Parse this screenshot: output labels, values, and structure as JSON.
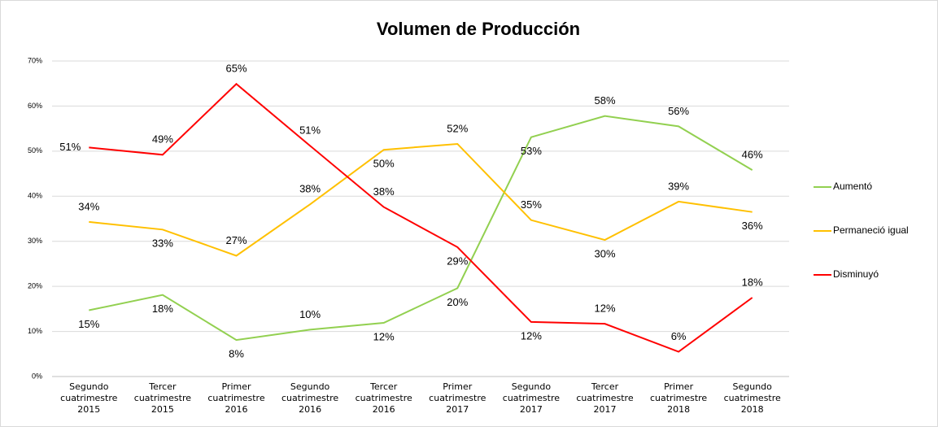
{
  "chart_data": {
    "type": "line",
    "title": "Volumen de Producción",
    "categories": [
      "Segundo cuatrimestre 2015",
      "Tercer cuatrimestre 2015",
      "Primer cuatrimestre 2016",
      "Segundo cuatrimestre 2016",
      "Tercer cuatrimestre 2016",
      "Primer cuatrimestre 2017",
      "Segundo cuatrimestre 2017",
      "Tercer cuatrimestre 2017",
      "Primer cuatrimestre 2018",
      "Segundo cuatrimestre 2018"
    ],
    "series": [
      {
        "name": "Aumentó",
        "color": "#92d050",
        "values": [
          14.7,
          18.1,
          8.1,
          10.4,
          11.9,
          19.6,
          53.1,
          57.8,
          55.5,
          45.8
        ],
        "value_labels": [
          "15%",
          "18%",
          "8%",
          "10%",
          "12%",
          "20%",
          "53%",
          "58%",
          "56%",
          "46%"
        ]
      },
      {
        "name": "Permaneció igual",
        "color": "#ffc000",
        "values": [
          34.3,
          32.6,
          26.8,
          38.2,
          50.3,
          51.6,
          34.7,
          30.3,
          38.8,
          36.5
        ],
        "value_labels": [
          "34%",
          "33%",
          "27%",
          "38%",
          "50%",
          "52%",
          "35%",
          "30%",
          "39%",
          "36%"
        ]
      },
      {
        "name": "Disminuyó",
        "color": "#ff0000",
        "values": [
          50.8,
          49.2,
          64.9,
          51.2,
          37.6,
          28.7,
          12.1,
          11.7,
          5.5,
          17.5
        ],
        "value_labels": [
          "51%",
          "49%",
          "65%",
          "51%",
          "38%",
          "29%",
          "12%",
          "12%",
          "6%",
          "18%"
        ]
      }
    ],
    "ylim": [
      0,
      70
    ],
    "yticks": [
      {
        "value": 0,
        "label": "0%"
      },
      {
        "value": 10,
        "label": "10%"
      },
      {
        "value": 20,
        "label": "20%"
      },
      {
        "value": 30,
        "label": "30%"
      },
      {
        "value": 40,
        "label": "40%"
      },
      {
        "value": 50,
        "label": "50%"
      },
      {
        "value": 60,
        "label": "60%"
      },
      {
        "value": 70,
        "label": "70%"
      }
    ],
    "grid": true,
    "legend": "right"
  }
}
